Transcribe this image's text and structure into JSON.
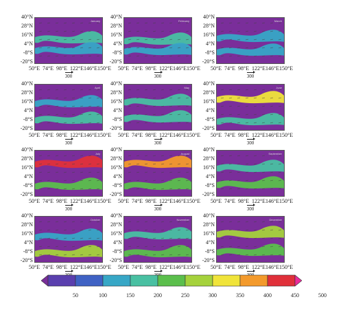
{
  "figure": {
    "lat_labels": [
      "40°N",
      "28°N",
      "16°N",
      "4°N",
      "-8°S",
      "-20°S"
    ],
    "lon_labels": [
      "50°E",
      "74°E",
      "98°E",
      "122°E",
      "146°E",
      "150°E"
    ],
    "reference_vector": "300",
    "panels": [
      {
        "month": "January"
      },
      {
        "month": "February"
      },
      {
        "month": "March"
      },
      {
        "month": "April"
      },
      {
        "month": "May"
      },
      {
        "month": "June"
      },
      {
        "month": "July"
      },
      {
        "month": "August"
      },
      {
        "month": "September"
      },
      {
        "month": "October"
      },
      {
        "month": "November"
      },
      {
        "month": "December"
      }
    ]
  },
  "colorbar": {
    "ticks": [
      "50",
      "100",
      "150",
      "200",
      "250",
      "300",
      "350",
      "400",
      "450",
      "500"
    ],
    "colors": [
      "#7a2e9a",
      "#5a3fae",
      "#3f62c4",
      "#37a7c6",
      "#49c0a2",
      "#5bbf4c",
      "#a5d23c",
      "#f0e43a",
      "#f39a2c",
      "#e0303a",
      "#ea2c9a"
    ]
  },
  "colors": {
    "background": "#7a2e9a",
    "frame": "#555555"
  }
}
